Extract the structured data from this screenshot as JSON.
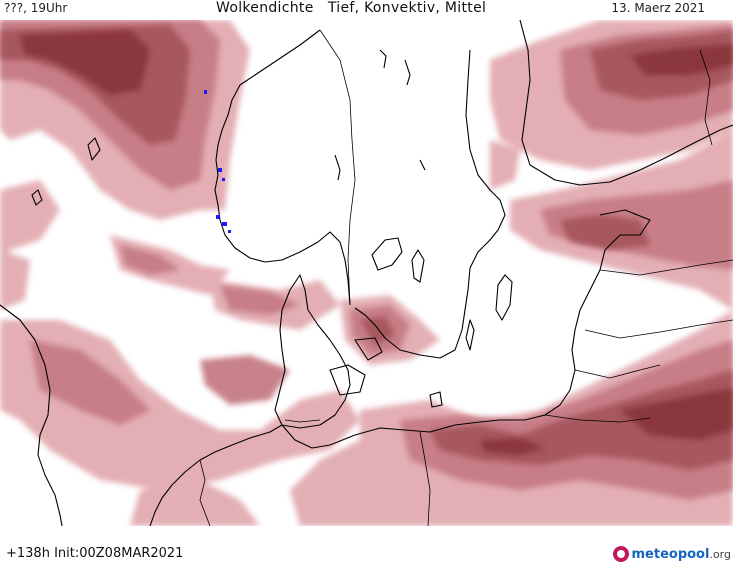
{
  "header": {
    "left": "???, 19Uhr",
    "title": "Wolkendichte   Tief, Konvektiv, Mittel",
    "date": "13. Maerz 2021"
  },
  "footer": {
    "forecast": "+138h  Init:00Z08MAR2021",
    "logo_main": "meteopool",
    "logo_suffix": ".org"
  },
  "map": {
    "variable": "Wolkendichte",
    "levels": [
      "Tief",
      "Konvektiv",
      "Mittel"
    ],
    "cloud_colors": [
      "#e8b4b8",
      "#d08a90",
      "#b05a62",
      "#8a2f38"
    ],
    "precip_color": "#0000ff",
    "coast_color": "#000000"
  }
}
